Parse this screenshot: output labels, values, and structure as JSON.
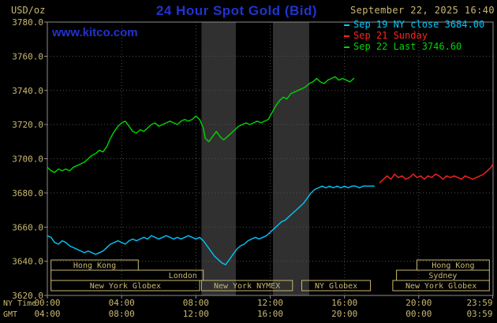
{
  "header": {
    "unit_label": "USD/oz",
    "title": "24 Hour Spot Gold (Bid)",
    "datetime": "September 22, 2025 16:40",
    "watermark": "www.kitco.com",
    "legend": [
      {
        "label": "Sep 19 NY close 3684.00",
        "color": "#00c8ff"
      },
      {
        "label": "Sep 21 Sunday",
        "color": "#ff2222"
      },
      {
        "label": "Sep 22 Last 3746.60",
        "color": "#00d400"
      }
    ]
  },
  "axes": {
    "ny_time_label": "NY Time",
    "gmt_label": "GMT",
    "x_tick_hours": [
      0,
      4,
      8,
      12,
      16,
      20,
      23.983
    ],
    "ny_ticks": [
      "00:00",
      "04:00",
      "08:00",
      "12:00",
      "16:00",
      "20:00",
      "23:59"
    ],
    "gmt_ticks": [
      "04:00",
      "08:00",
      "12:00",
      "16:00",
      "20:00",
      "00:00",
      "03:59"
    ],
    "y_ticks": [
      "3780.0",
      "3760.0",
      "3740.0",
      "3720.0",
      "3700.0",
      "3680.0",
      "3660.0",
      "3640.0",
      "3620.0"
    ]
  },
  "colors": {
    "background": "#000000",
    "khaki": "#c9b872",
    "title_blue": "#2233cc",
    "grid": "#4f4f4f",
    "border": "#8c8c8c",
    "band": "#303030"
  },
  "chart_data": {
    "type": "line",
    "title": "24 Hour Spot Gold (Bid)",
    "xlabel": "NY Time",
    "ylabel": "USD/oz",
    "xlim": [
      0,
      24
    ],
    "ylim": [
      3620,
      3780
    ],
    "grid": true,
    "legend_position": "top-right",
    "shaded_bands": [
      {
        "start": 8.3,
        "end": 10.15
      },
      {
        "start": 12.15,
        "end": 14.1
      }
    ],
    "series": [
      {
        "name": "Sep 19 NY close",
        "color": "#00c8ff",
        "close": 3684.0,
        "points": [
          [
            0,
            3655
          ],
          [
            0.2,
            3654
          ],
          [
            0.4,
            3651
          ],
          [
            0.6,
            3650
          ],
          [
            0.8,
            3652
          ],
          [
            1.0,
            3651
          ],
          [
            1.2,
            3649
          ],
          [
            1.4,
            3648
          ],
          [
            1.6,
            3647
          ],
          [
            1.8,
            3646
          ],
          [
            2.0,
            3645
          ],
          [
            2.2,
            3646
          ],
          [
            2.4,
            3645
          ],
          [
            2.6,
            3644
          ],
          [
            2.8,
            3645
          ],
          [
            3.0,
            3646
          ],
          [
            3.2,
            3648
          ],
          [
            3.4,
            3650
          ],
          [
            3.6,
            3651
          ],
          [
            3.8,
            3652
          ],
          [
            4.0,
            3651
          ],
          [
            4.2,
            3650
          ],
          [
            4.4,
            3652
          ],
          [
            4.6,
            3653
          ],
          [
            4.8,
            3652
          ],
          [
            5.0,
            3653
          ],
          [
            5.2,
            3654
          ],
          [
            5.4,
            3653
          ],
          [
            5.6,
            3655
          ],
          [
            5.8,
            3654
          ],
          [
            6.0,
            3653
          ],
          [
            6.2,
            3654
          ],
          [
            6.4,
            3655
          ],
          [
            6.6,
            3654
          ],
          [
            6.8,
            3653
          ],
          [
            7.0,
            3654
          ],
          [
            7.2,
            3653
          ],
          [
            7.4,
            3654
          ],
          [
            7.6,
            3655
          ],
          [
            7.8,
            3654
          ],
          [
            8.0,
            3653
          ],
          [
            8.2,
            3654
          ],
          [
            8.4,
            3652
          ],
          [
            8.6,
            3649
          ],
          [
            8.8,
            3646
          ],
          [
            9.0,
            3643
          ],
          [
            9.2,
            3641
          ],
          [
            9.4,
            3639
          ],
          [
            9.6,
            3638
          ],
          [
            9.8,
            3641
          ],
          [
            10.0,
            3644
          ],
          [
            10.2,
            3647
          ],
          [
            10.4,
            3649
          ],
          [
            10.6,
            3650
          ],
          [
            10.8,
            3652
          ],
          [
            11.0,
            3653
          ],
          [
            11.2,
            3654
          ],
          [
            11.4,
            3653
          ],
          [
            11.6,
            3654
          ],
          [
            11.8,
            3655
          ],
          [
            12.0,
            3657
          ],
          [
            12.2,
            3659
          ],
          [
            12.4,
            3661
          ],
          [
            12.6,
            3663
          ],
          [
            12.8,
            3664
          ],
          [
            13.0,
            3666
          ],
          [
            13.2,
            3668
          ],
          [
            13.4,
            3670
          ],
          [
            13.6,
            3672
          ],
          [
            13.8,
            3674
          ],
          [
            14.0,
            3677
          ],
          [
            14.2,
            3680
          ],
          [
            14.4,
            3682
          ],
          [
            14.6,
            3683
          ],
          [
            14.8,
            3684
          ],
          [
            15.0,
            3683
          ],
          [
            15.2,
            3684
          ],
          [
            15.4,
            3683
          ],
          [
            15.6,
            3684
          ],
          [
            15.8,
            3683
          ],
          [
            16.0,
            3684
          ],
          [
            16.2,
            3683
          ],
          [
            16.4,
            3684
          ],
          [
            16.6,
            3684
          ],
          [
            16.8,
            3683
          ],
          [
            17.0,
            3684
          ],
          [
            17.2,
            3684
          ],
          [
            17.4,
            3684
          ],
          [
            17.6,
            3684
          ]
        ]
      },
      {
        "name": "Sep 21 Sunday",
        "color": "#ff2222",
        "points": [
          [
            17.9,
            3686
          ],
          [
            18.1,
            3688
          ],
          [
            18.3,
            3690
          ],
          [
            18.5,
            3688
          ],
          [
            18.7,
            3691
          ],
          [
            18.9,
            3689
          ],
          [
            19.1,
            3690
          ],
          [
            19.3,
            3688
          ],
          [
            19.5,
            3689
          ],
          [
            19.7,
            3691
          ],
          [
            19.9,
            3689
          ],
          [
            20.1,
            3690
          ],
          [
            20.3,
            3688
          ],
          [
            20.5,
            3690
          ],
          [
            20.7,
            3689
          ],
          [
            20.9,
            3691
          ],
          [
            21.1,
            3690
          ],
          [
            21.3,
            3688
          ],
          [
            21.5,
            3690
          ],
          [
            21.7,
            3689
          ],
          [
            21.9,
            3690
          ],
          [
            22.1,
            3689
          ],
          [
            22.3,
            3688
          ],
          [
            22.5,
            3690
          ],
          [
            22.7,
            3689
          ],
          [
            22.9,
            3688
          ],
          [
            23.1,
            3689
          ],
          [
            23.3,
            3690
          ],
          [
            23.5,
            3691
          ],
          [
            23.7,
            3693
          ],
          [
            23.9,
            3695
          ],
          [
            24.0,
            3697
          ]
        ]
      },
      {
        "name": "Sep 22 Last",
        "color": "#00d400",
        "last": 3746.6,
        "points": [
          [
            0,
            3695
          ],
          [
            0.2,
            3693
          ],
          [
            0.4,
            3692
          ],
          [
            0.6,
            3694
          ],
          [
            0.8,
            3693
          ],
          [
            1.0,
            3694
          ],
          [
            1.2,
            3693
          ],
          [
            1.4,
            3695
          ],
          [
            1.6,
            3696
          ],
          [
            1.8,
            3697
          ],
          [
            2.0,
            3698
          ],
          [
            2.2,
            3700
          ],
          [
            2.4,
            3702
          ],
          [
            2.6,
            3703
          ],
          [
            2.8,
            3705
          ],
          [
            3.0,
            3704
          ],
          [
            3.2,
            3707
          ],
          [
            3.4,
            3712
          ],
          [
            3.6,
            3716
          ],
          [
            3.8,
            3719
          ],
          [
            4.0,
            3721
          ],
          [
            4.2,
            3722
          ],
          [
            4.4,
            3719
          ],
          [
            4.6,
            3716
          ],
          [
            4.8,
            3715
          ],
          [
            5.0,
            3717
          ],
          [
            5.2,
            3716
          ],
          [
            5.4,
            3718
          ],
          [
            5.6,
            3720
          ],
          [
            5.8,
            3721
          ],
          [
            6.0,
            3719
          ],
          [
            6.2,
            3720
          ],
          [
            6.4,
            3721
          ],
          [
            6.6,
            3722
          ],
          [
            6.8,
            3721
          ],
          [
            7.0,
            3720
          ],
          [
            7.2,
            3722
          ],
          [
            7.4,
            3723
          ],
          [
            7.6,
            3722
          ],
          [
            7.8,
            3723
          ],
          [
            8.0,
            3725
          ],
          [
            8.2,
            3723
          ],
          [
            8.4,
            3718
          ],
          [
            8.5,
            3712
          ],
          [
            8.7,
            3710
          ],
          [
            8.9,
            3713
          ],
          [
            9.1,
            3716
          ],
          [
            9.3,
            3713
          ],
          [
            9.5,
            3711
          ],
          [
            9.7,
            3713
          ],
          [
            9.9,
            3715
          ],
          [
            10.1,
            3717
          ],
          [
            10.3,
            3719
          ],
          [
            10.5,
            3720
          ],
          [
            10.7,
            3721
          ],
          [
            10.9,
            3720
          ],
          [
            11.1,
            3721
          ],
          [
            11.3,
            3722
          ],
          [
            11.5,
            3721
          ],
          [
            11.7,
            3722
          ],
          [
            11.9,
            3723
          ],
          [
            12.1,
            3727
          ],
          [
            12.3,
            3731
          ],
          [
            12.5,
            3734
          ],
          [
            12.7,
            3736
          ],
          [
            12.9,
            3735
          ],
          [
            13.1,
            3738
          ],
          [
            13.3,
            3739
          ],
          [
            13.5,
            3740
          ],
          [
            13.7,
            3741
          ],
          [
            13.9,
            3742
          ],
          [
            14.1,
            3744
          ],
          [
            14.3,
            3745
          ],
          [
            14.5,
            3747
          ],
          [
            14.7,
            3745
          ],
          [
            14.9,
            3744
          ],
          [
            15.1,
            3746
          ],
          [
            15.3,
            3747
          ],
          [
            15.5,
            3748
          ],
          [
            15.7,
            3746
          ],
          [
            15.9,
            3747
          ],
          [
            16.1,
            3746
          ],
          [
            16.3,
            3745
          ],
          [
            16.5,
            3747
          ]
        ]
      }
    ],
    "sessions": [
      {
        "row": 0,
        "start": 0.2,
        "end": 4.9,
        "label": "Hong Kong",
        "label_pos": "center"
      },
      {
        "row": 0,
        "start": 19.9,
        "end": 23.8,
        "label": "Hong Kong",
        "label_pos": "center"
      },
      {
        "row": 1,
        "start": 0.2,
        "end": 8.4,
        "label": "London",
        "label_pos": "right"
      },
      {
        "row": 1,
        "start": 18.8,
        "end": 23.8,
        "label": "Sydney",
        "label_pos": "center"
      },
      {
        "row": 2,
        "start": 0.2,
        "end": 8.2,
        "label": "New York Globex",
        "label_pos": "center"
      },
      {
        "row": 2,
        "start": 8.3,
        "end": 13.2,
        "label": "New York NYMEX",
        "label_pos": "center"
      },
      {
        "row": 2,
        "start": 13.7,
        "end": 17.4,
        "label": "NY Globex",
        "label_pos": "center"
      },
      {
        "row": 2,
        "start": 18.6,
        "end": 23.8,
        "label": "New York Globex",
        "label_pos": "center"
      }
    ]
  }
}
